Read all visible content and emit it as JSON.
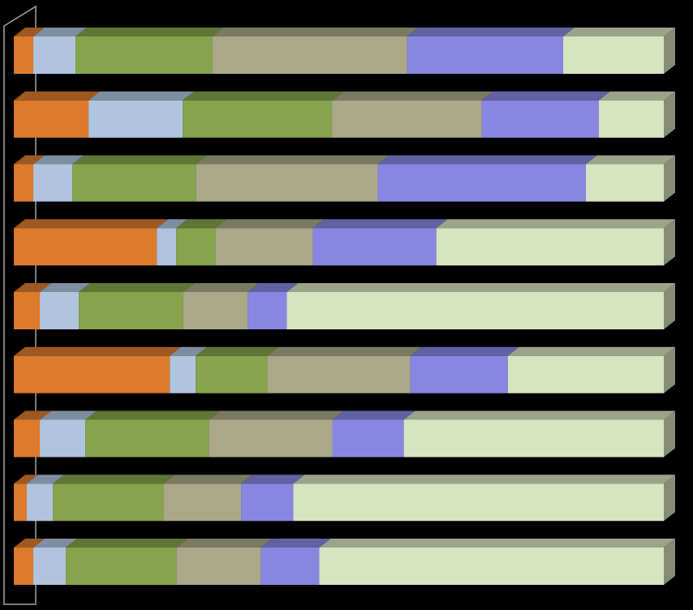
{
  "chart_data": {
    "type": "bar",
    "orientation": "horizontal",
    "stacked": "100%",
    "style": "3d",
    "background": "#000000",
    "title": "",
    "xlabel": "",
    "ylabel": "",
    "xlim": [
      0,
      100
    ],
    "grid": false,
    "legend": "none",
    "categories": [
      "",
      "",
      "",
      "",
      "",
      "",
      "",
      "",
      ""
    ],
    "series": [
      {
        "color": "#dd7a2b",
        "values": [
          3,
          11.5,
          3,
          22,
          4,
          24,
          4,
          2,
          3
        ]
      },
      {
        "color": "#b0c4de",
        "values": [
          6.5,
          14.5,
          6,
          3,
          6,
          4,
          7,
          4,
          5
        ]
      },
      {
        "color": "#86a44b",
        "values": [
          21,
          23,
          19,
          6,
          16,
          11,
          19,
          17,
          17
        ]
      },
      {
        "color": "#aba887",
        "values": [
          30,
          23,
          28,
          15,
          10,
          22,
          19,
          12,
          13
        ]
      },
      {
        "color": "#8787e2",
        "values": [
          24,
          18,
          32,
          19,
          6,
          15,
          11,
          8,
          9
        ]
      },
      {
        "color": "#d6e4c0",
        "values": [
          15.5,
          10,
          12,
          35,
          58,
          24,
          40,
          57,
          53
        ]
      }
    ]
  }
}
